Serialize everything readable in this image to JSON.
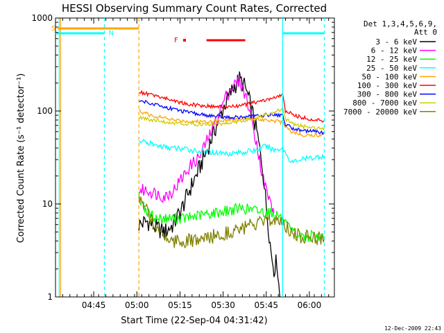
{
  "chart_data": {
    "type": "line",
    "title": "HESSI Observing Summary Count Rates, Corrected",
    "xlabel": "Start Time (22-Sep-04 04:31:42)",
    "ylabel": "Corrected Count Rate (s⁻¹ detector⁻¹)",
    "x_unit": "minutes after 04:31:42",
    "xlim": [
      0,
      97
    ],
    "ylim": [
      1,
      1000
    ],
    "yscale": "log",
    "x_tick_labels": [
      "04:45",
      "05:00",
      "05:15",
      "05:30",
      "05:45",
      "06:00"
    ],
    "x_tick_values": [
      13.3,
      28.3,
      43.3,
      58.3,
      73.3,
      88.3
    ],
    "y_tick_labels": [
      "1",
      "10",
      "100",
      "1000"
    ],
    "y_tick_values": [
      1,
      10,
      100,
      1000
    ],
    "legend": {
      "header": [
        "Det 1,3,4,5,6,9,",
        "Att 0"
      ],
      "placement": "outside-right"
    },
    "series": [
      {
        "name": "3 - 6 keV",
        "color": "#000000",
        "points": [
          [
            29,
            6
          ],
          [
            32,
            6.5
          ],
          [
            35,
            5.5
          ],
          [
            38,
            5
          ],
          [
            41,
            6
          ],
          [
            44,
            9
          ],
          [
            47,
            15
          ],
          [
            50,
            24
          ],
          [
            53,
            40
          ],
          [
            56,
            70
          ],
          [
            59,
            120
          ],
          [
            62,
            180
          ],
          [
            64,
            220
          ],
          [
            66,
            180
          ],
          [
            68,
            110
          ],
          [
            70,
            60
          ],
          [
            72,
            25
          ],
          [
            73,
            12
          ],
          [
            74,
            6
          ],
          [
            75,
            3
          ],
          [
            76,
            2
          ],
          [
            77,
            2.5
          ],
          [
            78,
            1
          ]
        ]
      },
      {
        "name": "6 - 12 keV",
        "color": "#ff00ff",
        "points": [
          [
            29,
            14
          ],
          [
            32,
            14
          ],
          [
            35,
            13
          ],
          [
            38,
            12
          ],
          [
            41,
            14
          ],
          [
            44,
            19
          ],
          [
            47,
            26
          ],
          [
            50,
            32
          ],
          [
            53,
            50
          ],
          [
            56,
            80
          ],
          [
            59,
            140
          ],
          [
            62,
            190
          ],
          [
            64,
            210
          ],
          [
            66,
            150
          ],
          [
            68,
            90
          ],
          [
            70,
            45
          ],
          [
            72,
            20
          ],
          [
            74,
            12
          ],
          [
            76,
            8
          ]
        ]
      },
      {
        "name": "12 - 25 keV",
        "color": "#00ff00",
        "points": [
          [
            29,
            12
          ],
          [
            32,
            8
          ],
          [
            35,
            7
          ],
          [
            40,
            7
          ],
          [
            45,
            7
          ],
          [
            50,
            7.5
          ],
          [
            55,
            8
          ],
          [
            60,
            8.5
          ],
          [
            65,
            9
          ],
          [
            70,
            8.5
          ],
          [
            75,
            8
          ],
          [
            78,
            7.5
          ],
          [
            80,
            6
          ],
          [
            82,
            5
          ],
          [
            85,
            4.5
          ],
          [
            88,
            4.5
          ],
          [
            92,
            4.5
          ],
          [
            93.5,
            4.5
          ]
        ]
      },
      {
        "name": "25 - 50 keV",
        "color": "#00ffff",
        "points": [
          [
            29,
            48
          ],
          [
            32,
            45
          ],
          [
            36,
            42
          ],
          [
            40,
            40
          ],
          [
            45,
            39
          ],
          [
            50,
            37
          ],
          [
            55,
            36
          ],
          [
            60,
            35
          ],
          [
            65,
            36
          ],
          [
            70,
            38
          ],
          [
            73,
            42
          ],
          [
            76,
            38
          ],
          [
            79,
            40
          ],
          [
            82,
            28
          ],
          [
            85,
            30
          ],
          [
            88,
            31
          ],
          [
            91,
            32
          ],
          [
            93.5,
            33
          ]
        ]
      },
      {
        "name": "50 - 100 keV",
        "color": "#ffa500",
        "points": [
          [
            29,
            100
          ],
          [
            33,
            90
          ],
          [
            37,
            85
          ],
          [
            41,
            80
          ],
          [
            45,
            78
          ],
          [
            50,
            77
          ],
          [
            55,
            78
          ],
          [
            60,
            80
          ],
          [
            65,
            82
          ],
          [
            70,
            82
          ],
          [
            75,
            80
          ],
          [
            79,
            75
          ],
          [
            82,
            60
          ],
          [
            85,
            56
          ],
          [
            88,
            55
          ],
          [
            91,
            55
          ],
          [
            93.5,
            56
          ]
        ]
      },
      {
        "name": "100 - 300 keV",
        "color": "#ff0000",
        "points": [
          [
            29,
            160
          ],
          [
            33,
            150
          ],
          [
            37,
            140
          ],
          [
            41,
            130
          ],
          [
            45,
            120
          ],
          [
            50,
            115
          ],
          [
            55,
            112
          ],
          [
            60,
            110
          ],
          [
            65,
            115
          ],
          [
            70,
            125
          ],
          [
            75,
            135
          ],
          [
            79,
            148
          ],
          [
            80,
            100
          ],
          [
            83,
            90
          ],
          [
            86,
            85
          ],
          [
            90,
            80
          ],
          [
            93.5,
            78
          ]
        ]
      },
      {
        "name": "300 - 800 keV",
        "color": "#0000ff",
        "points": [
          [
            29,
            130
          ],
          [
            33,
            122
          ],
          [
            37,
            112
          ],
          [
            41,
            105
          ],
          [
            45,
            98
          ],
          [
            50,
            92
          ],
          [
            55,
            88
          ],
          [
            60,
            85
          ],
          [
            65,
            86
          ],
          [
            70,
            88
          ],
          [
            75,
            92
          ],
          [
            79,
            90
          ],
          [
            80,
            72
          ],
          [
            83,
            64
          ],
          [
            86,
            62
          ],
          [
            90,
            60
          ],
          [
            93.5,
            58
          ]
        ]
      },
      {
        "name": "800 - 7000 keV",
        "color": "#cccc00",
        "points": [
          [
            29,
            85
          ],
          [
            33,
            80
          ],
          [
            37,
            77
          ],
          [
            41,
            75
          ],
          [
            45,
            73
          ],
          [
            50,
            72
          ],
          [
            55,
            72
          ],
          [
            60,
            74
          ],
          [
            65,
            78
          ],
          [
            70,
            85
          ],
          [
            75,
            95
          ],
          [
            79,
            105
          ],
          [
            80,
            82
          ],
          [
            83,
            72
          ],
          [
            86,
            68
          ],
          [
            90,
            66
          ],
          [
            93.5,
            66
          ]
        ]
      },
      {
        "name": "7000 - 20000 keV",
        "color": "#808000",
        "points": [
          [
            29,
            11
          ],
          [
            32,
            8
          ],
          [
            35,
            6
          ],
          [
            38,
            4.5
          ],
          [
            41,
            4
          ],
          [
            45,
            4
          ],
          [
            50,
            4
          ],
          [
            55,
            4.5
          ],
          [
            60,
            5
          ],
          [
            65,
            5.5
          ],
          [
            70,
            6
          ],
          [
            75,
            6.5
          ],
          [
            78,
            7
          ],
          [
            80,
            6
          ],
          [
            82,
            5
          ],
          [
            85,
            4.5
          ],
          [
            88,
            4.5
          ],
          [
            92,
            4.3
          ],
          [
            93.5,
            4.3
          ]
        ]
      }
    ],
    "state_bars": [
      {
        "label": "S",
        "color": "#ffa500",
        "x_start": 0.8,
        "x_end": 29
      },
      {
        "label": "N",
        "color": "#00ffff",
        "x_start": 0,
        "x_end": 17
      },
      {
        "label": "N",
        "color": "#00ffff",
        "x_start": 79,
        "x_end": 93.5
      },
      {
        "label": "F",
        "color": "#ff0000",
        "x_start": 52.5,
        "x_end": 66
      }
    ],
    "flag_marks": [
      {
        "label": "S",
        "color": "#ffa500"
      },
      {
        "label": "N",
        "color": "#00ffff"
      },
      {
        "label": "F",
        "color": "#ff0000"
      }
    ],
    "vertical_lines": [
      {
        "x": 1.3,
        "color": "#00ffff",
        "style": "solid"
      },
      {
        "x": 1.8,
        "color": "#ffa500",
        "style": "solid"
      },
      {
        "x": 17,
        "color": "#00ffff",
        "style": "dashed"
      },
      {
        "x": 29,
        "color": "#ffa500",
        "style": "dashed"
      },
      {
        "x": 79,
        "color": "#00ffff",
        "style": "solid"
      },
      {
        "x": 93.5,
        "color": "#00ffff",
        "style": "dashed"
      }
    ],
    "footer_timestamp": "12-Dec-2009 22:43"
  }
}
